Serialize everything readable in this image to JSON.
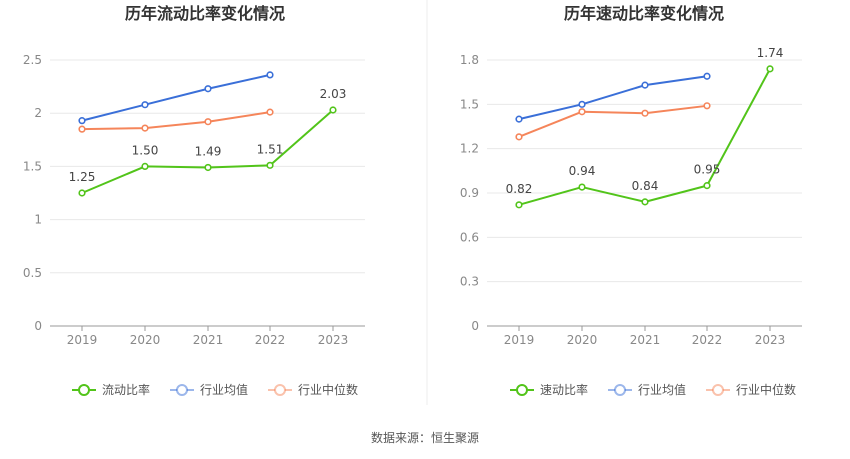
{
  "source_text": "数据来源：恒生聚源",
  "legend_colors": {
    "current_ratio": "#52c41a",
    "industry_avg": "#3a6fd8",
    "industry_median": "#f5855a"
  },
  "chart_data": [
    {
      "type": "line",
      "title": "历年流动比率变化情况",
      "x": [
        "2019",
        "2020",
        "2021",
        "2022",
        "2023"
      ],
      "ylim": [
        0,
        2.5
      ],
      "yticks": [
        "0",
        "0.5",
        "1",
        "1.5",
        "2",
        "2.5"
      ],
      "grid": true,
      "legend_position": "bottom",
      "series": [
        {
          "name": "流动比率",
          "color": "#52c41a",
          "values": [
            1.25,
            1.5,
            1.49,
            1.51,
            2.03
          ],
          "labels": [
            "1.25",
            "1.50",
            "1.49",
            "1.51",
            "2.03"
          ]
        },
        {
          "name": "行业均值",
          "color": "#3a6fd8",
          "values": [
            1.93,
            2.08,
            2.23,
            2.36,
            null
          ]
        },
        {
          "name": "行业中位数",
          "color": "#f5855a",
          "values": [
            1.85,
            1.86,
            1.92,
            2.01,
            null
          ]
        }
      ]
    },
    {
      "type": "line",
      "title": "历年速动比率变化情况",
      "x": [
        "2019",
        "2020",
        "2021",
        "2022",
        "2023"
      ],
      "ylim": [
        0,
        1.8
      ],
      "yticks": [
        "0",
        "0.3",
        "0.6",
        "0.9",
        "1.2",
        "1.5",
        "1.8"
      ],
      "grid": true,
      "legend_position": "bottom",
      "series": [
        {
          "name": "速动比率",
          "color": "#52c41a",
          "values": [
            0.82,
            0.94,
            0.84,
            0.95,
            1.74
          ],
          "labels": [
            "0.82",
            "0.94",
            "0.84",
            "0.95",
            "1.74"
          ]
        },
        {
          "name": "行业均值",
          "color": "#3a6fd8",
          "values": [
            1.4,
            1.5,
            1.63,
            1.69,
            null
          ]
        },
        {
          "name": "行业中位数",
          "color": "#f5855a",
          "values": [
            1.28,
            1.45,
            1.44,
            1.49,
            null
          ]
        }
      ]
    }
  ]
}
